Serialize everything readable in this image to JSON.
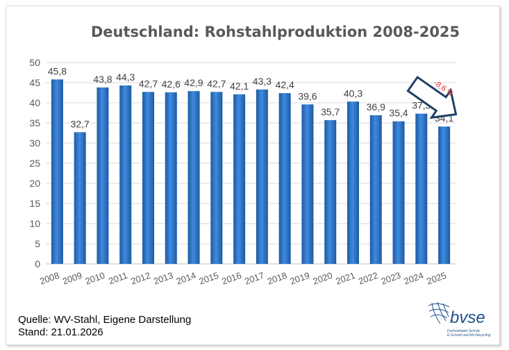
{
  "chart_data": {
    "type": "bar",
    "title": "Deutschland: Rohstahlproduktion 2008-2025",
    "categories": [
      "2008",
      "2009",
      "2010",
      "2011",
      "2012",
      "2013",
      "2014",
      "2015",
      "2016",
      "2017",
      "2018",
      "2019",
      "2020",
      "2021",
      "2022",
      "2023",
      "2024",
      "2025"
    ],
    "values": [
      45.8,
      32.7,
      43.8,
      44.3,
      42.7,
      42.6,
      42.9,
      42.7,
      42.1,
      43.3,
      42.4,
      39.6,
      35.7,
      40.3,
      36.9,
      35.4,
      37.3,
      34.1
    ],
    "data_labels": [
      "45,8",
      "32,7",
      "43,8",
      "44,3",
      "42,7",
      "42,6",
      "42,9",
      "42,7",
      "42,1",
      "43,3",
      "42,4",
      "39,6",
      "35,7",
      "40,3",
      "36,9",
      "35,4",
      "37,3",
      "34,1"
    ],
    "ylim": [
      0,
      50
    ],
    "yticks": [
      "0",
      "5",
      "10",
      "15",
      "20",
      "25",
      "30",
      "35",
      "40",
      "45",
      "50"
    ],
    "grid": true,
    "bar_color": "#2e75c6",
    "annotation": {
      "text": "-8,6 %",
      "color": "#e03030",
      "arrow_color": "#1f3f66"
    }
  },
  "footer": {
    "source": "Quelle: WV-Stahl, Eigene Darstellung",
    "date": "Stand: 21.01.2026"
  },
  "logo": {
    "name": "bvse",
    "subtitle_1": "Fachverband Schrott,",
    "subtitle_2": "E-Schrott und Kfz-Recycling"
  }
}
